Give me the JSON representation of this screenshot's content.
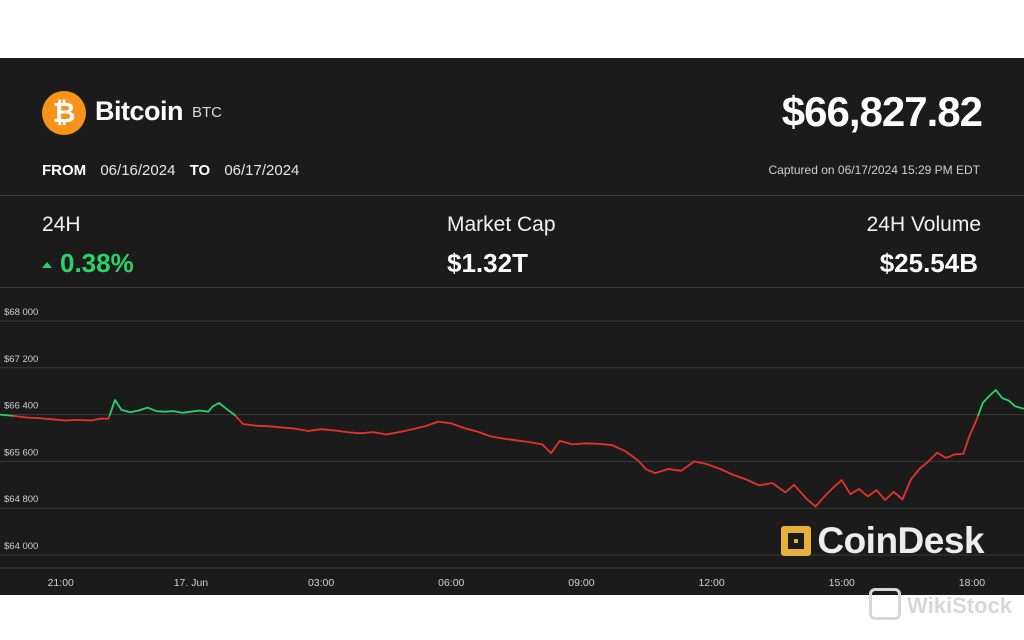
{
  "header": {
    "coin_name": "Bitcoin",
    "coin_symbol": "BTC",
    "logo_glyph": "₿",
    "price": "$66,827.82",
    "from_label": "FROM",
    "from_date": "06/16/2024",
    "to_label": "TO",
    "to_date": "06/17/2024",
    "captured": "Captured on 06/17/2024 15:29 PM EDT"
  },
  "stats": {
    "change_label": "24H",
    "change_value": "0.38%",
    "market_cap_label": "Market Cap",
    "market_cap_value": "$1.32T",
    "volume_label": "24H Volume",
    "volume_value": "$25.54B"
  },
  "chart_data": {
    "type": "line",
    "y_ticks": [
      64000,
      64800,
      65600,
      66400,
      67200,
      68000
    ],
    "y_tick_labels": [
      "$64 000",
      "$64 800",
      "$65 600",
      "$66 400",
      "$67 200",
      "$68 000"
    ],
    "x_ticks": [
      {
        "hour": 20.5,
        "label": "21:00"
      },
      {
        "hour": 23.5,
        "label": "17. Jun"
      },
      {
        "hour": 26.5,
        "label": "03:00"
      },
      {
        "hour": 29.5,
        "label": "06:00"
      },
      {
        "hour": 32.5,
        "label": "09:00"
      },
      {
        "hour": 35.5,
        "label": "12:00"
      },
      {
        "hour": 38.5,
        "label": "15:00"
      },
      {
        "hour": 41.5,
        "label": "18:00"
      }
    ],
    "xlim": [
      19.1,
      42.7
    ],
    "ylim": [
      64000,
      68000
    ],
    "baseline": 66380,
    "grid": true,
    "color_above": "#2bd16b",
    "color_below": "#e5322d",
    "series": [
      {
        "points": [
          [
            19.1,
            66400
          ],
          [
            19.4,
            66380
          ],
          [
            19.7,
            66350
          ],
          [
            20.0,
            66340
          ],
          [
            20.3,
            66320
          ],
          [
            20.6,
            66300
          ],
          [
            20.9,
            66310
          ],
          [
            21.2,
            66300
          ],
          [
            21.4,
            66330
          ],
          [
            21.6,
            66330
          ],
          [
            21.75,
            66650
          ],
          [
            21.9,
            66480
          ],
          [
            22.1,
            66440
          ],
          [
            22.3,
            66470
          ],
          [
            22.5,
            66520
          ],
          [
            22.7,
            66460
          ],
          [
            22.9,
            66450
          ],
          [
            23.1,
            66460
          ],
          [
            23.3,
            66430
          ],
          [
            23.5,
            66450
          ],
          [
            23.7,
            66470
          ],
          [
            23.9,
            66450
          ],
          [
            24.0,
            66540
          ],
          [
            24.15,
            66600
          ],
          [
            24.3,
            66510
          ],
          [
            24.5,
            66400
          ],
          [
            24.7,
            66240
          ],
          [
            25.0,
            66210
          ],
          [
            25.3,
            66200
          ],
          [
            25.6,
            66180
          ],
          [
            25.9,
            66160
          ],
          [
            26.2,
            66120
          ],
          [
            26.5,
            66150
          ],
          [
            26.8,
            66130
          ],
          [
            27.1,
            66100
          ],
          [
            27.4,
            66080
          ],
          [
            27.7,
            66100
          ],
          [
            28.0,
            66060
          ],
          [
            28.3,
            66100
          ],
          [
            28.6,
            66150
          ],
          [
            28.9,
            66200
          ],
          [
            29.2,
            66280
          ],
          [
            29.5,
            66250
          ],
          [
            29.8,
            66170
          ],
          [
            30.1,
            66110
          ],
          [
            30.4,
            66030
          ],
          [
            30.7,
            65990
          ],
          [
            31.0,
            65960
          ],
          [
            31.3,
            65930
          ],
          [
            31.6,
            65890
          ],
          [
            31.8,
            65740
          ],
          [
            32.0,
            65950
          ],
          [
            32.3,
            65890
          ],
          [
            32.6,
            65910
          ],
          [
            32.9,
            65900
          ],
          [
            33.2,
            65880
          ],
          [
            33.5,
            65780
          ],
          [
            33.8,
            65620
          ],
          [
            34.0,
            65460
          ],
          [
            34.2,
            65400
          ],
          [
            34.5,
            65470
          ],
          [
            34.8,
            65440
          ],
          [
            35.1,
            65600
          ],
          [
            35.4,
            65550
          ],
          [
            35.7,
            65470
          ],
          [
            36.0,
            65370
          ],
          [
            36.3,
            65290
          ],
          [
            36.6,
            65190
          ],
          [
            36.9,
            65230
          ],
          [
            37.2,
            65070
          ],
          [
            37.4,
            65200
          ],
          [
            37.7,
            64950
          ],
          [
            37.9,
            64830
          ],
          [
            38.1,
            65000
          ],
          [
            38.3,
            65150
          ],
          [
            38.5,
            65280
          ],
          [
            38.7,
            65040
          ],
          [
            38.9,
            65130
          ],
          [
            39.1,
            65000
          ],
          [
            39.3,
            65110
          ],
          [
            39.5,
            64940
          ],
          [
            39.7,
            65080
          ],
          [
            39.9,
            64950
          ],
          [
            40.1,
            65300
          ],
          [
            40.3,
            65480
          ],
          [
            40.5,
            65600
          ],
          [
            40.7,
            65750
          ],
          [
            40.9,
            65660
          ],
          [
            41.1,
            65720
          ],
          [
            41.3,
            65730
          ],
          [
            41.45,
            66050
          ],
          [
            41.6,
            66300
          ],
          [
            41.75,
            66600
          ],
          [
            41.9,
            66720
          ],
          [
            42.05,
            66820
          ],
          [
            42.2,
            66680
          ],
          [
            42.35,
            66640
          ],
          [
            42.5,
            66540
          ],
          [
            42.7,
            66500
          ]
        ]
      }
    ]
  },
  "branding": {
    "coindesk": "CoinDesk",
    "watermark": "WikiStock"
  }
}
